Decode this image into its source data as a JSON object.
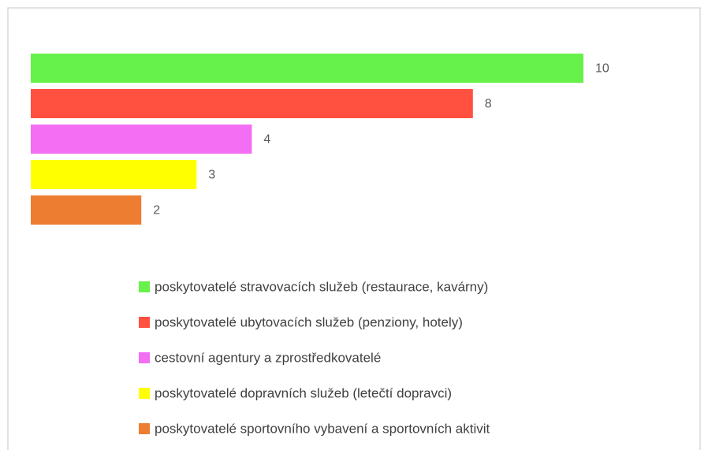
{
  "chart_data": {
    "type": "bar",
    "orientation": "horizontal",
    "series": [
      {
        "name": "poskytovatelé stravovacích služeb (restaurace, kavárny)",
        "color": "#66f24a",
        "values": [
          10
        ]
      },
      {
        "name": "poskytovatelé ubytovacích služeb (penziony, hotely)",
        "color": "#ff5040",
        "values": [
          8
        ]
      },
      {
        "name": "cestovní agentury a zprostředkovatelé",
        "color": "#f36ef3",
        "values": [
          4
        ]
      },
      {
        "name": "poskytovatelé dopravních služeb (letečtí dopravci)",
        "color": "#ffff00",
        "values": [
          3
        ]
      },
      {
        "name": "poskytovatelé sportovního vybavení a sportovních aktivit",
        "color": "#ed7d31",
        "values": [
          2
        ]
      }
    ],
    "xlim": [
      0,
      10
    ],
    "legend": "bottom"
  }
}
